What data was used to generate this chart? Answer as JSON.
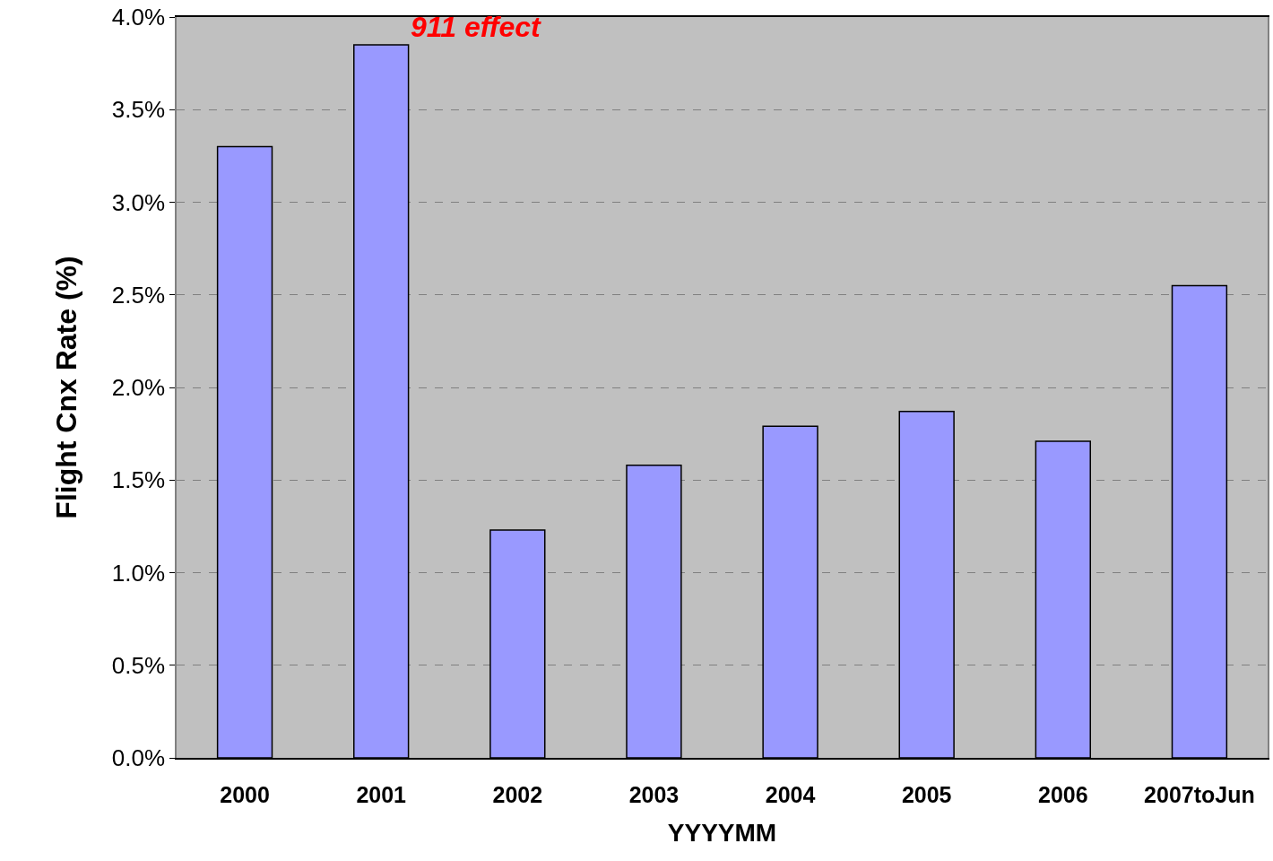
{
  "chart_data": {
    "type": "bar",
    "xlabel": "YYYYMM",
    "ylabel": "Flight Cnx Rate (%)",
    "categories": [
      "2000",
      "2001",
      "2002",
      "2003",
      "2004",
      "2005",
      "2006",
      "2007toJun"
    ],
    "values": [
      3.3,
      3.85,
      1.23,
      1.58,
      1.79,
      1.87,
      1.71,
      2.55
    ],
    "color": "#9999ff",
    "ylim": [
      0,
      4
    ],
    "yticks": [
      {
        "value": 0,
        "label": "0.0%"
      },
      {
        "value": 0.5,
        "label": "0.5%"
      },
      {
        "value": 1,
        "label": "1.0%"
      },
      {
        "value": 1.5,
        "label": "1.5%"
      },
      {
        "value": 2,
        "label": "2.0%"
      },
      {
        "value": 2.5,
        "label": "2.5%"
      },
      {
        "value": 3,
        "label": "3.0%"
      },
      {
        "value": 3.5,
        "label": "3.5%"
      },
      {
        "value": 4,
        "label": "4.0%"
      }
    ],
    "grid": "y",
    "legend": false,
    "annotations": [
      {
        "text": "911 effect",
        "x": "2001",
        "y": 3.85
      }
    ]
  }
}
